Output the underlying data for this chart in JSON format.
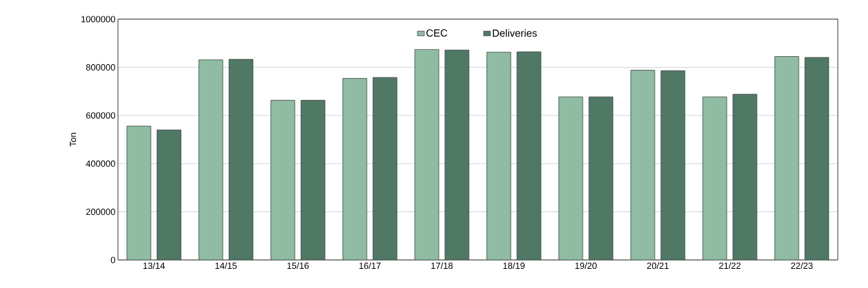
{
  "chart_data": {
    "type": "bar",
    "ylabel": "Ton",
    "categories": [
      "13/14",
      "14/15",
      "15/16",
      "16/17",
      "17/18",
      "18/19",
      "19/20",
      "20/21",
      "21/22",
      "22/23"
    ],
    "series": [
      {
        "name": "CEC",
        "color": "#8fbca2",
        "values": [
          556000,
          831000,
          663000,
          754000,
          874000,
          863000,
          677000,
          788000,
          677000,
          845000
        ]
      },
      {
        "name": "Deliveries",
        "color": "#4f7965",
        "values": [
          540000,
          833000,
          663000,
          758000,
          872000,
          864000,
          677000,
          786000,
          688000,
          841000
        ]
      }
    ],
    "ylim": [
      0,
      1000000
    ],
    "yticks": [
      0,
      200000,
      400000,
      600000,
      800000,
      1000000
    ],
    "grid": "y",
    "legend": "top"
  }
}
